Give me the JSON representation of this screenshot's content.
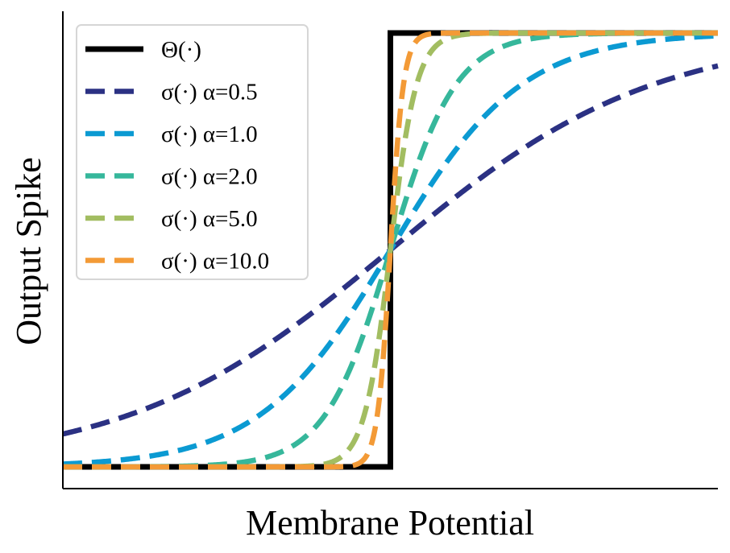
{
  "chart_data": {
    "type": "line",
    "xlabel": "Membrane Potential",
    "ylabel": "Output Spike",
    "xlim": [
      -5,
      5
    ],
    "ylim": [
      -0.05,
      1.05
    ],
    "x_ticks_shown": false,
    "y_ticks_shown": false,
    "grid": false,
    "legend_position": "top-left",
    "series": [
      {
        "name": "Θ(·)",
        "function": "heaviside",
        "color": "#000000",
        "style": "solid"
      },
      {
        "name": "σ(·) α=0.5",
        "function": "sigmoid",
        "alpha": 0.5,
        "color": "#2b3183",
        "style": "dashed"
      },
      {
        "name": "σ(·) α=1.0",
        "function": "sigmoid",
        "alpha": 1.0,
        "color": "#0b9ad2",
        "style": "dashed"
      },
      {
        "name": "σ(·) α=2.0",
        "function": "sigmoid",
        "alpha": 2.0,
        "color": "#36b79b",
        "style": "dashed"
      },
      {
        "name": "σ(·) α=5.0",
        "function": "sigmoid",
        "alpha": 5.0,
        "color": "#a2bd61",
        "style": "dashed"
      },
      {
        "name": "σ(·) α=10.0",
        "function": "sigmoid",
        "alpha": 10.0,
        "color": "#f39a36",
        "style": "dashed"
      }
    ]
  }
}
